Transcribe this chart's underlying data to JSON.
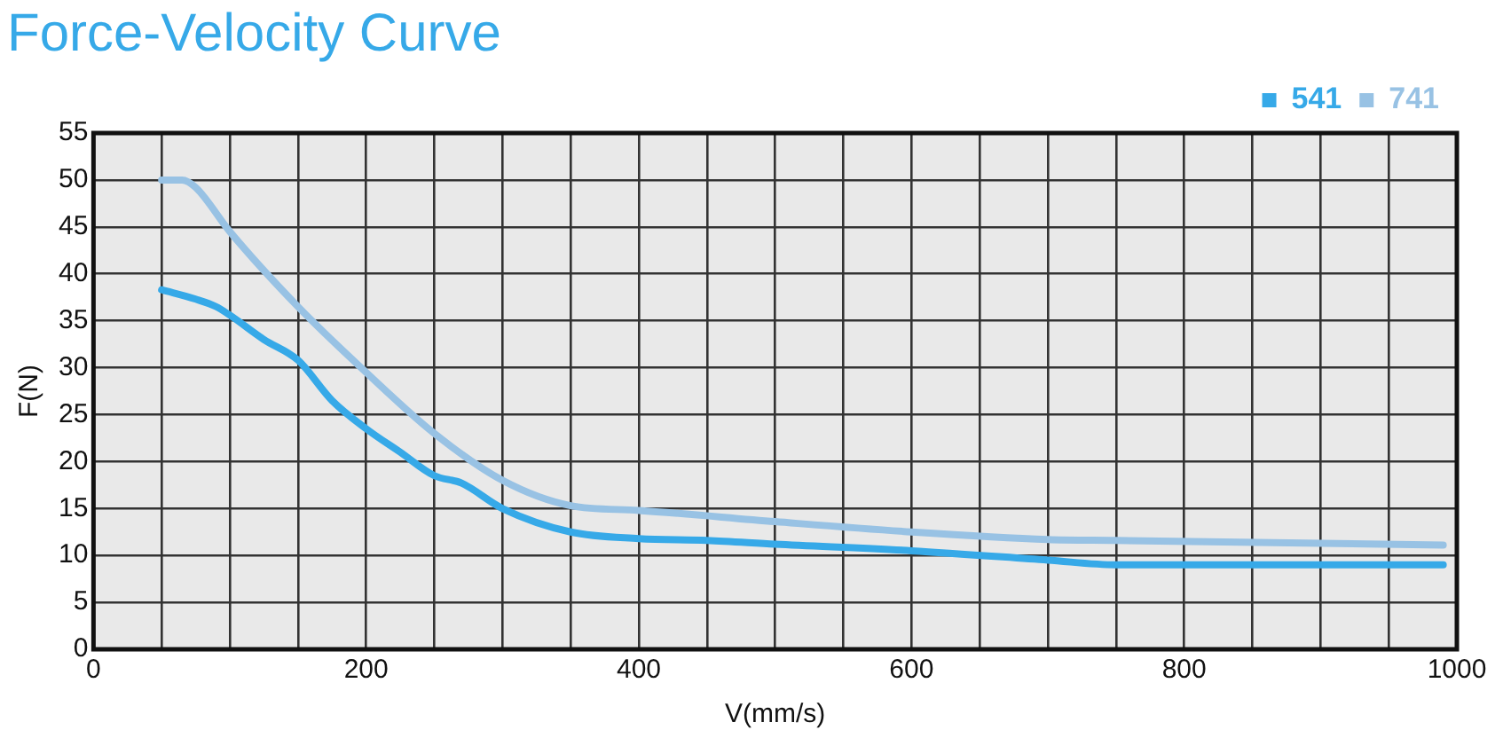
{
  "chart_data": {
    "type": "line",
    "title": "Force-Velocity Curve",
    "xlabel": "V(mm/s)",
    "ylabel": "F(N)",
    "xlim": [
      0,
      1000
    ],
    "ylim": [
      0,
      55
    ],
    "xticks": [
      0,
      {
        "value": 50,
        "label": null
      },
      {
        "value": 100,
        "label": null
      },
      {
        "value": 150,
        "label": null
      },
      200,
      {
        "value": 250,
        "label": null
      },
      {
        "value": 300,
        "label": null
      },
      {
        "value": 350,
        "label": null
      },
      400,
      {
        "value": 450,
        "label": null
      },
      {
        "value": 500,
        "label": null
      },
      {
        "value": 550,
        "label": null
      },
      600,
      {
        "value": 650,
        "label": null
      },
      {
        "value": 700,
        "label": null
      },
      {
        "value": 750,
        "label": null
      },
      800,
      {
        "value": 850,
        "label": null
      },
      {
        "value": 900,
        "label": null
      },
      {
        "value": 950,
        "label": null
      },
      1000
    ],
    "yticks": [
      0,
      5,
      10,
      15,
      20,
      25,
      30,
      35,
      40,
      45,
      50,
      55
    ],
    "grid": true,
    "legend": "top right",
    "marker": "none",
    "line_style": "solid",
    "series": [
      {
        "name": "541",
        "color": "#36a9e8",
        "x": [
          50,
          75,
          90,
          100,
          125,
          150,
          175,
          200,
          225,
          250,
          270,
          300,
          350,
          400,
          450,
          500,
          600,
          700,
          750,
          800,
          990
        ],
        "values": [
          38.3,
          37.3,
          36.5,
          35.6,
          33,
          30.8,
          26.5,
          23.5,
          21,
          18.5,
          17.7,
          15,
          12.5,
          11.8,
          11.6,
          11.2,
          10.5,
          9.5,
          9,
          9,
          9
        ]
      },
      {
        "name": "741",
        "color": "#98c2e4",
        "x": [
          50,
          65,
          75,
          100,
          150,
          200,
          250,
          300,
          350,
          400,
          500,
          600,
          700,
          750,
          990
        ],
        "values": [
          50,
          50,
          49.2,
          44.5,
          36.5,
          29.5,
          23,
          18,
          15.3,
          14.8,
          13.6,
          12.5,
          11.7,
          11.6,
          11.1
        ]
      }
    ]
  }
}
